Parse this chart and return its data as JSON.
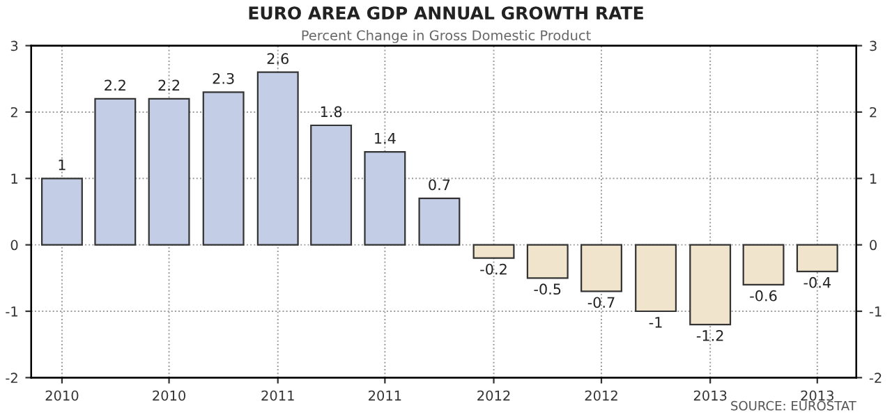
{
  "chart_data": {
    "type": "bar",
    "title": "EURO AREA GDP ANNUAL GROWTH RATE",
    "subtitle": "Percent Change in Gross Domestic Product",
    "x": [
      "2010-01-01",
      "2010-04-01",
      "2010-07-01",
      "2010-10-01",
      "2011-01-01",
      "2011-04-01",
      "2011-07-01",
      "2011-10-01",
      "2012-01-01",
      "2012-04-01",
      "2012-07-01",
      "2012-10-01",
      "2013-01-01",
      "2013-04-01",
      "2013-07-01"
    ],
    "values": [
      1,
      2.2,
      2.2,
      2.3,
      2.6,
      1.8,
      1.4,
      0.7,
      -0.2,
      -0.5,
      -0.7,
      -1,
      -1.2,
      -0.6,
      -0.4
    ],
    "colors": [
      "#c3cde6",
      "#c3cde6",
      "#c3cde6",
      "#c3cde6",
      "#c3cde6",
      "#c3cde6",
      "#c3cde6",
      "#c3cde6",
      "#f0e4cc",
      "#f0e4cc",
      "#f0e4cc",
      "#f0e4cc",
      "#f0e4cc",
      "#f0e4cc",
      "#f0e4cc"
    ],
    "data_labels": true,
    "xlim": [
      "2009-11-10",
      "2013-09-05"
    ],
    "xticks": [
      {
        "value": "2010-01-01",
        "label": "2010"
      },
      {
        "value": "2010-07-01",
        "label": "2010"
      },
      {
        "value": "2011-01-01",
        "label": "2011"
      },
      {
        "value": "2011-07-01",
        "label": "2011"
      },
      {
        "value": "2012-01-01",
        "label": "2012"
      },
      {
        "value": "2012-07-01",
        "label": "2012"
      },
      {
        "value": "2013-01-01",
        "label": "2013"
      },
      {
        "value": "2013-07-01",
        "label": "2013"
      }
    ],
    "ylim": [
      -2,
      3
    ],
    "yticks": [
      -2,
      -1,
      0,
      1,
      2,
      3
    ],
    "y2lim": [
      -2,
      3
    ],
    "y2ticks": [
      -2,
      -1,
      0,
      1,
      2,
      3
    ],
    "grid": true,
    "annotations": [
      "SOURCE: EUROSTAT"
    ]
  }
}
